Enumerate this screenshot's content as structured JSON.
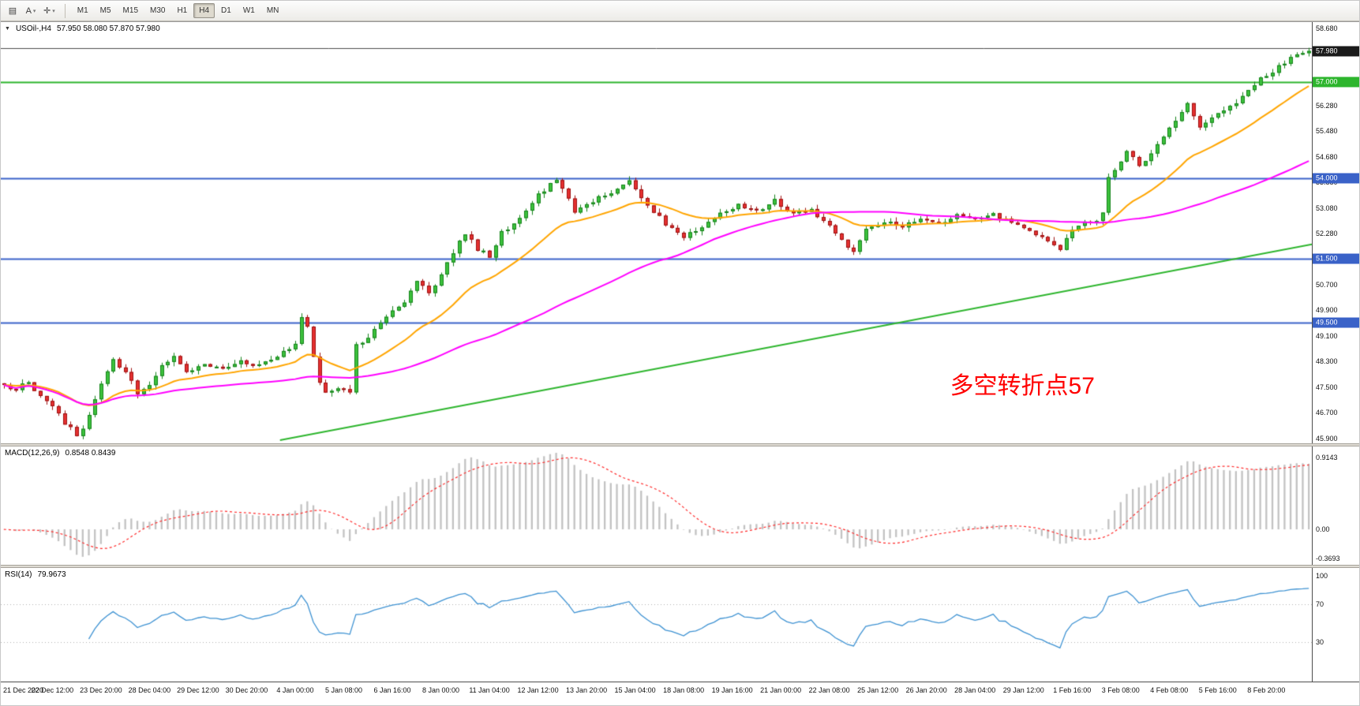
{
  "toolbar": {
    "icons": [
      {
        "name": "charts-bar-icon",
        "glyph": "▤",
        "caret": false
      },
      {
        "name": "text-annotation-icon",
        "glyph": "A",
        "caret": true
      },
      {
        "name": "drawing-tools-icon",
        "glyph": "✛",
        "caret": true
      }
    ],
    "timeframes": [
      {
        "label": "M1",
        "selected": false
      },
      {
        "label": "M5",
        "selected": false
      },
      {
        "label": "M15",
        "selected": false
      },
      {
        "label": "M30",
        "selected": false
      },
      {
        "label": "H1",
        "selected": false
      },
      {
        "label": "H4",
        "selected": true
      },
      {
        "label": "D1",
        "selected": false
      },
      {
        "label": "W1",
        "selected": false
      },
      {
        "label": "MN",
        "selected": false
      }
    ]
  },
  "chart_data": {
    "type": "candlestick",
    "symbol": "USOil-",
    "timeframe": "H4",
    "header": {
      "collapse_icon": "▼",
      "symbol_timeframe": "USOil-,H4",
      "ohlc_text": "57.950 58.080 57.870 57.980"
    },
    "quote": {
      "open": 57.95,
      "high": 58.08,
      "low": 57.87,
      "close": 57.98
    },
    "colors": {
      "bull": "#3cc13c",
      "bull_edge": "#15821a",
      "bear": "#e53030",
      "bear_edge": "#9c1010"
    },
    "price_axis": {
      "min": 45.75,
      "max": 58.88,
      "ticks": [
        "58.680",
        "56.280",
        "55.480",
        "54.680",
        "53.880",
        "53.080",
        "52.280",
        "50.700",
        "49.900",
        "49.100",
        "48.300",
        "47.500",
        "46.700",
        "45.900"
      ]
    },
    "price_tags": [
      {
        "value": 57.98,
        "label": "57.980",
        "color": "#1a1a1a"
      },
      {
        "value": 57.0,
        "label": "57.000",
        "color": "#2db52d"
      },
      {
        "value": 54.0,
        "label": "54.000",
        "color": "#3a62c8"
      },
      {
        "value": 51.5,
        "label": "51.500",
        "color": "#3a62c8"
      },
      {
        "value": 49.5,
        "label": "49.500",
        "color": "#3a62c8"
      }
    ],
    "hlines": [
      {
        "value": 58.08,
        "color": "#4d4d4d",
        "width": 1
      },
      {
        "value": 57.0,
        "color": "#2db52d",
        "width": 2
      },
      {
        "value": 54.0,
        "color": "#3a62c8",
        "width": 2
      },
      {
        "value": 51.5,
        "color": "#3a62c8",
        "width": 2
      },
      {
        "value": 49.5,
        "color": "#3a62c8",
        "width": 2
      }
    ],
    "candles": {
      "count": 216,
      "seed": 12,
      "noise": 0.07,
      "wick": 0.14,
      "keyframes": [
        [
          0,
          47.6
        ],
        [
          2,
          47.4
        ],
        [
          4,
          47.7
        ],
        [
          6,
          47.2
        ],
        [
          8,
          46.9
        ],
        [
          10,
          46.4
        ],
        [
          12,
          46.0
        ],
        [
          13,
          46.2
        ],
        [
          14,
          46.6
        ],
        [
          16,
          47.6
        ],
        [
          18,
          48.3
        ],
        [
          20,
          48.0
        ],
        [
          22,
          47.3
        ],
        [
          24,
          47.6
        ],
        [
          26,
          48.2
        ],
        [
          28,
          48.5
        ],
        [
          30,
          48.0
        ],
        [
          33,
          48.2
        ],
        [
          36,
          48.1
        ],
        [
          39,
          48.3
        ],
        [
          42,
          48.2
        ],
        [
          45,
          48.5
        ],
        [
          47,
          48.7
        ],
        [
          48,
          48.9
        ],
        [
          49,
          49.7
        ],
        [
          50,
          49.4
        ],
        [
          51,
          48.4
        ],
        [
          52,
          47.7
        ],
        [
          53,
          47.3
        ],
        [
          55,
          47.5
        ],
        [
          57,
          47.4
        ],
        [
          58,
          48.8
        ],
        [
          60,
          49.1
        ],
        [
          62,
          49.5
        ],
        [
          64,
          49.9
        ],
        [
          66,
          50.2
        ],
        [
          68,
          50.8
        ],
        [
          70,
          50.4
        ],
        [
          72,
          51.0
        ],
        [
          74,
          51.7
        ],
        [
          76,
          52.3
        ],
        [
          78,
          51.8
        ],
        [
          80,
          51.6
        ],
        [
          82,
          52.3
        ],
        [
          84,
          52.6
        ],
        [
          86,
          53.0
        ],
        [
          88,
          53.5
        ],
        [
          91,
          53.95
        ],
        [
          94,
          53.0
        ],
        [
          97,
          53.3
        ],
        [
          100,
          53.6
        ],
        [
          103,
          53.9
        ],
        [
          106,
          53.2
        ],
        [
          109,
          52.6
        ],
        [
          112,
          52.2
        ],
        [
          115,
          52.5
        ],
        [
          118,
          52.9
        ],
        [
          121,
          53.2
        ],
        [
          124,
          53.0
        ],
        [
          127,
          53.3
        ],
        [
          130,
          52.9
        ],
        [
          133,
          53.0
        ],
        [
          136,
          52.6
        ],
        [
          138,
          52.1
        ],
        [
          140,
          51.7
        ],
        [
          142,
          52.4
        ],
        [
          145,
          52.7
        ],
        [
          148,
          52.5
        ],
        [
          151,
          52.8
        ],
        [
          154,
          52.6
        ],
        [
          157,
          52.9
        ],
        [
          160,
          52.7
        ],
        [
          163,
          52.9
        ],
        [
          166,
          52.6
        ],
        [
          169,
          52.4
        ],
        [
          172,
          52.1
        ],
        [
          174,
          51.8
        ],
        [
          176,
          52.4
        ],
        [
          178,
          52.6
        ],
        [
          180,
          52.7
        ],
        [
          181,
          52.9
        ],
        [
          182,
          54.0
        ],
        [
          183,
          54.3
        ],
        [
          185,
          54.9
        ],
        [
          187,
          54.4
        ],
        [
          189,
          54.8
        ],
        [
          191,
          55.3
        ],
        [
          193,
          55.8
        ],
        [
          195,
          56.3
        ],
        [
          197,
          55.6
        ],
        [
          199,
          55.9
        ],
        [
          201,
          56.1
        ],
        [
          203,
          56.4
        ],
        [
          205,
          56.8
        ],
        [
          207,
          57.1
        ],
        [
          209,
          57.35
        ],
        [
          211,
          57.6
        ],
        [
          213,
          57.85
        ],
        [
          215,
          57.98
        ]
      ]
    },
    "moving_averages": [
      {
        "name": "ma-fast",
        "type": "ema",
        "period": 20,
        "color": "#ffa500",
        "width": 2
      },
      {
        "name": "ma-slow",
        "type": "sma",
        "period": 60,
        "color": "#ff00ff",
        "width": 2
      }
    ],
    "trendline": {
      "from_index": 46,
      "from_price": 45.85,
      "to_index": 216,
      "to_price": 51.95,
      "color": "#2db52d",
      "width": 2
    },
    "annotation": {
      "text": "多空转折点57",
      "color": "#ff0000",
      "x_frac": 0.724,
      "top_price": 48.15,
      "font_px": 30
    },
    "macd": {
      "label": "MACD(12,26,9)",
      "values_text": "0.8548 0.8439",
      "fast": 12,
      "slow": 26,
      "signal": 9,
      "bar_color": "#c2c2c2",
      "signal_color": "#ff2a2a",
      "axis": [
        {
          "value": 0.9143,
          "label": "0.9143"
        },
        {
          "value": 0,
          "label": "0.00"
        },
        {
          "value": -0.3693,
          "label": "-0.3693"
        }
      ]
    },
    "rsi": {
      "label": "RSI(14)",
      "value_text": "79.9673",
      "period": 14,
      "line_color": "#3e92d2",
      "levels": [
        70,
        30
      ],
      "scale": {
        "min": -12,
        "max": 108
      },
      "axis": [
        {
          "value": 100,
          "label": "100"
        },
        {
          "value": 70,
          "label": "70"
        },
        {
          "value": 30,
          "label": "30"
        }
      ]
    },
    "time_axis": {
      "step": 8,
      "labels": [
        "21 Dec 2020",
        "22 Dec 12:00",
        "23 Dec 20:00",
        "28 Dec 04:00",
        "29 Dec 12:00",
        "30 Dec 20:00",
        "4 Jan 00:00",
        "5 Jan 08:00",
        "6 Jan 16:00",
        "8 Jan 00:00",
        "11 Jan 04:00",
        "12 Jan 12:00",
        "13 Jan 20:00",
        "15 Jan 04:00",
        "18 Jan 08:00",
        "19 Jan 16:00",
        "21 Jan 00:00",
        "22 Jan 08:00",
        "25 Jan 12:00",
        "26 Jan 20:00",
        "28 Jan 04:00",
        "29 Jan 12:00",
        "1 Feb 16:00",
        "3 Feb 08:00",
        "4 Feb 08:00",
        "5 Feb 16:00",
        "8 Feb 20:00"
      ]
    }
  }
}
